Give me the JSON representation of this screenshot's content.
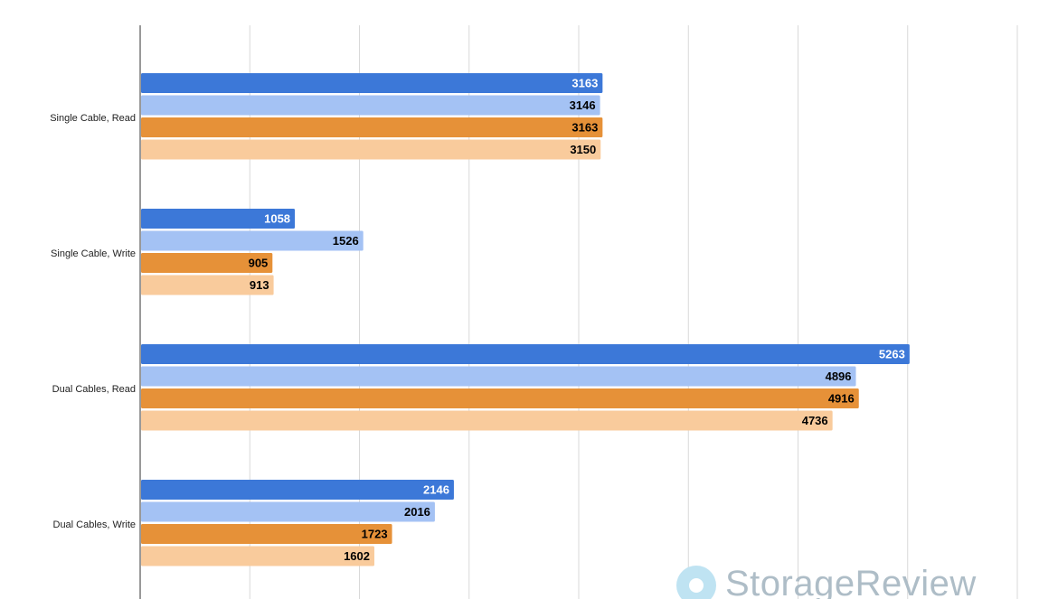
{
  "chart_data": {
    "type": "bar",
    "orientation": "horizontal",
    "categories": [
      "Single Cable, Read",
      "Single Cable, Write",
      "Dual Cables, Read",
      "Dual Cables, Write"
    ],
    "series": [
      {
        "values": [
          3163,
          1058,
          5263,
          2146
        ],
        "color": "#3c78d8",
        "label_color": "#ffffff"
      },
      {
        "values": [
          3146,
          1526,
          4896,
          2016
        ],
        "color": "#a4c2f4",
        "label_color": "#000000"
      },
      {
        "values": [
          3163,
          905,
          4916,
          1723
        ],
        "color": "#e69138",
        "label_color": "#000000"
      },
      {
        "values": [
          3150,
          913,
          4736,
          1602
        ],
        "color": "#f9cb9c",
        "label_color": "#000000"
      }
    ],
    "xlim": [
      0,
      6000
    ],
    "gridlines": true,
    "title": "",
    "xlabel": "",
    "ylabel": ""
  },
  "watermark": {
    "text": "StorageReview",
    "icon": "storagereview-logo-icon"
  }
}
